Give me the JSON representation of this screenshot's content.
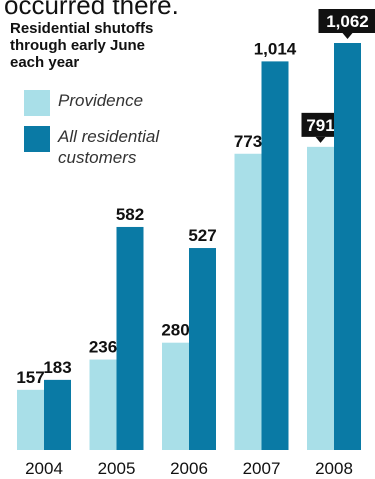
{
  "header": {
    "partial_text": "occurred there.",
    "subtitle": "Residential shutoffs through early June each year"
  },
  "colors": {
    "providence": "#a9dfe8",
    "all": "#0a7aa5",
    "highlight_label_bg": "#111111"
  },
  "chart_data": {
    "type": "bar",
    "title": "Residential shutoffs through early June each year",
    "categories": [
      "2004",
      "2005",
      "2006",
      "2007",
      "2008"
    ],
    "series": [
      {
        "name": "Providence",
        "values": [
          157,
          236,
          280,
          773,
          791
        ]
      },
      {
        "name": "All residential customers",
        "values": [
          183,
          582,
          527,
          1014,
          1062
        ]
      }
    ],
    "data_labels": [
      [
        "157",
        "236",
        "280",
        "773",
        "791"
      ],
      [
        "183",
        "582",
        "527",
        "1,014",
        "1,062"
      ]
    ],
    "highlighted_category": "2008",
    "ylim": [
      0,
      1062
    ],
    "grid": false,
    "legend_position": "top-left",
    "xlabel": "",
    "ylabel": ""
  }
}
